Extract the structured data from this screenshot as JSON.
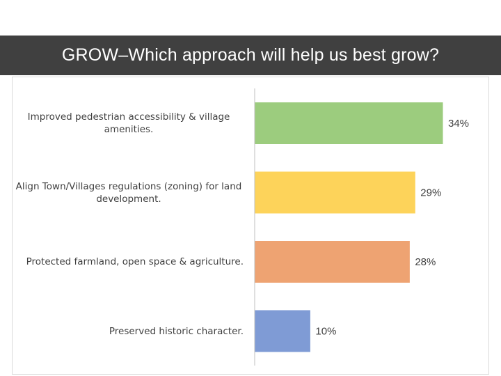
{
  "header": {
    "title": "GROW–Which approach will help us best grow?"
  },
  "chart_data": {
    "type": "bar",
    "orientation": "horizontal",
    "title": "",
    "xlabel": "",
    "ylabel": "",
    "xlim": [
      0,
      40
    ],
    "grid": false,
    "categories": [
      "Improved pedestrian accessibility & village amenities.",
      "Align Town/Villages regulations (zoning) for land development.",
      "Protected farmland, open space & agriculture.",
      "Preserved historic character."
    ],
    "values": [
      34,
      29,
      28,
      10
    ],
    "data_labels": [
      "34%",
      "29%",
      "28%",
      "10%"
    ],
    "colors": [
      "#9ccc7e",
      "#fdd35a",
      "#eea372",
      "#7f9bd5"
    ]
  }
}
